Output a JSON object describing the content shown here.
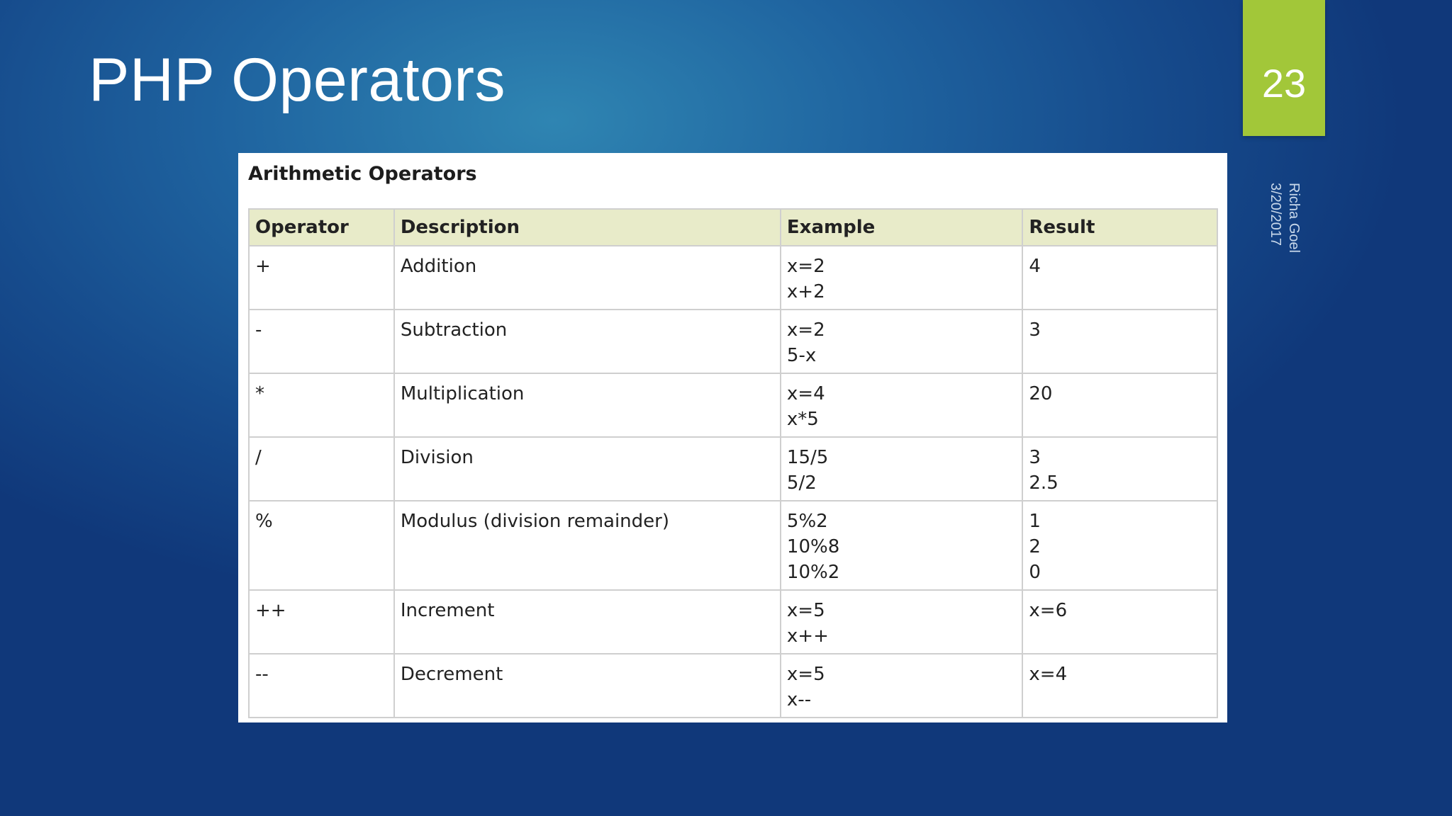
{
  "slide": {
    "title": "PHP Operators",
    "number": "23",
    "author": "Richa Goel",
    "date": "3/20/2017"
  },
  "table": {
    "caption": "Arithmetic Operators",
    "headers": [
      "Operator",
      "Description",
      "Example",
      "Result"
    ],
    "rows": [
      {
        "operator": "+",
        "description": "Addition",
        "example": [
          "x=2",
          "x+2"
        ],
        "result": [
          "4"
        ]
      },
      {
        "operator": "-",
        "description": "Subtraction",
        "example": [
          "x=2",
          "5-x"
        ],
        "result": [
          "3"
        ]
      },
      {
        "operator": "*",
        "description": "Multiplication",
        "example": [
          "x=4",
          "x*5"
        ],
        "result": [
          "20"
        ]
      },
      {
        "operator": "/",
        "description": "Division",
        "example": [
          "15/5",
          "5/2"
        ],
        "result": [
          "3",
          "2.5"
        ]
      },
      {
        "operator": "%",
        "description": "Modulus (division remainder)",
        "example": [
          "5%2",
          "10%8",
          "10%2"
        ],
        "result": [
          "1",
          "2",
          "0"
        ]
      },
      {
        "operator": "++",
        "description": "Increment",
        "example": [
          "x=5",
          "x++"
        ],
        "result": [
          "x=6"
        ]
      },
      {
        "operator": "--",
        "description": "Decrement",
        "example": [
          "x=5",
          "x--"
        ],
        "result": [
          "x=4"
        ]
      }
    ]
  },
  "colors": {
    "background": "#1f64a0",
    "accent": "#a2c739",
    "header_row": "#e8ebc9"
  }
}
